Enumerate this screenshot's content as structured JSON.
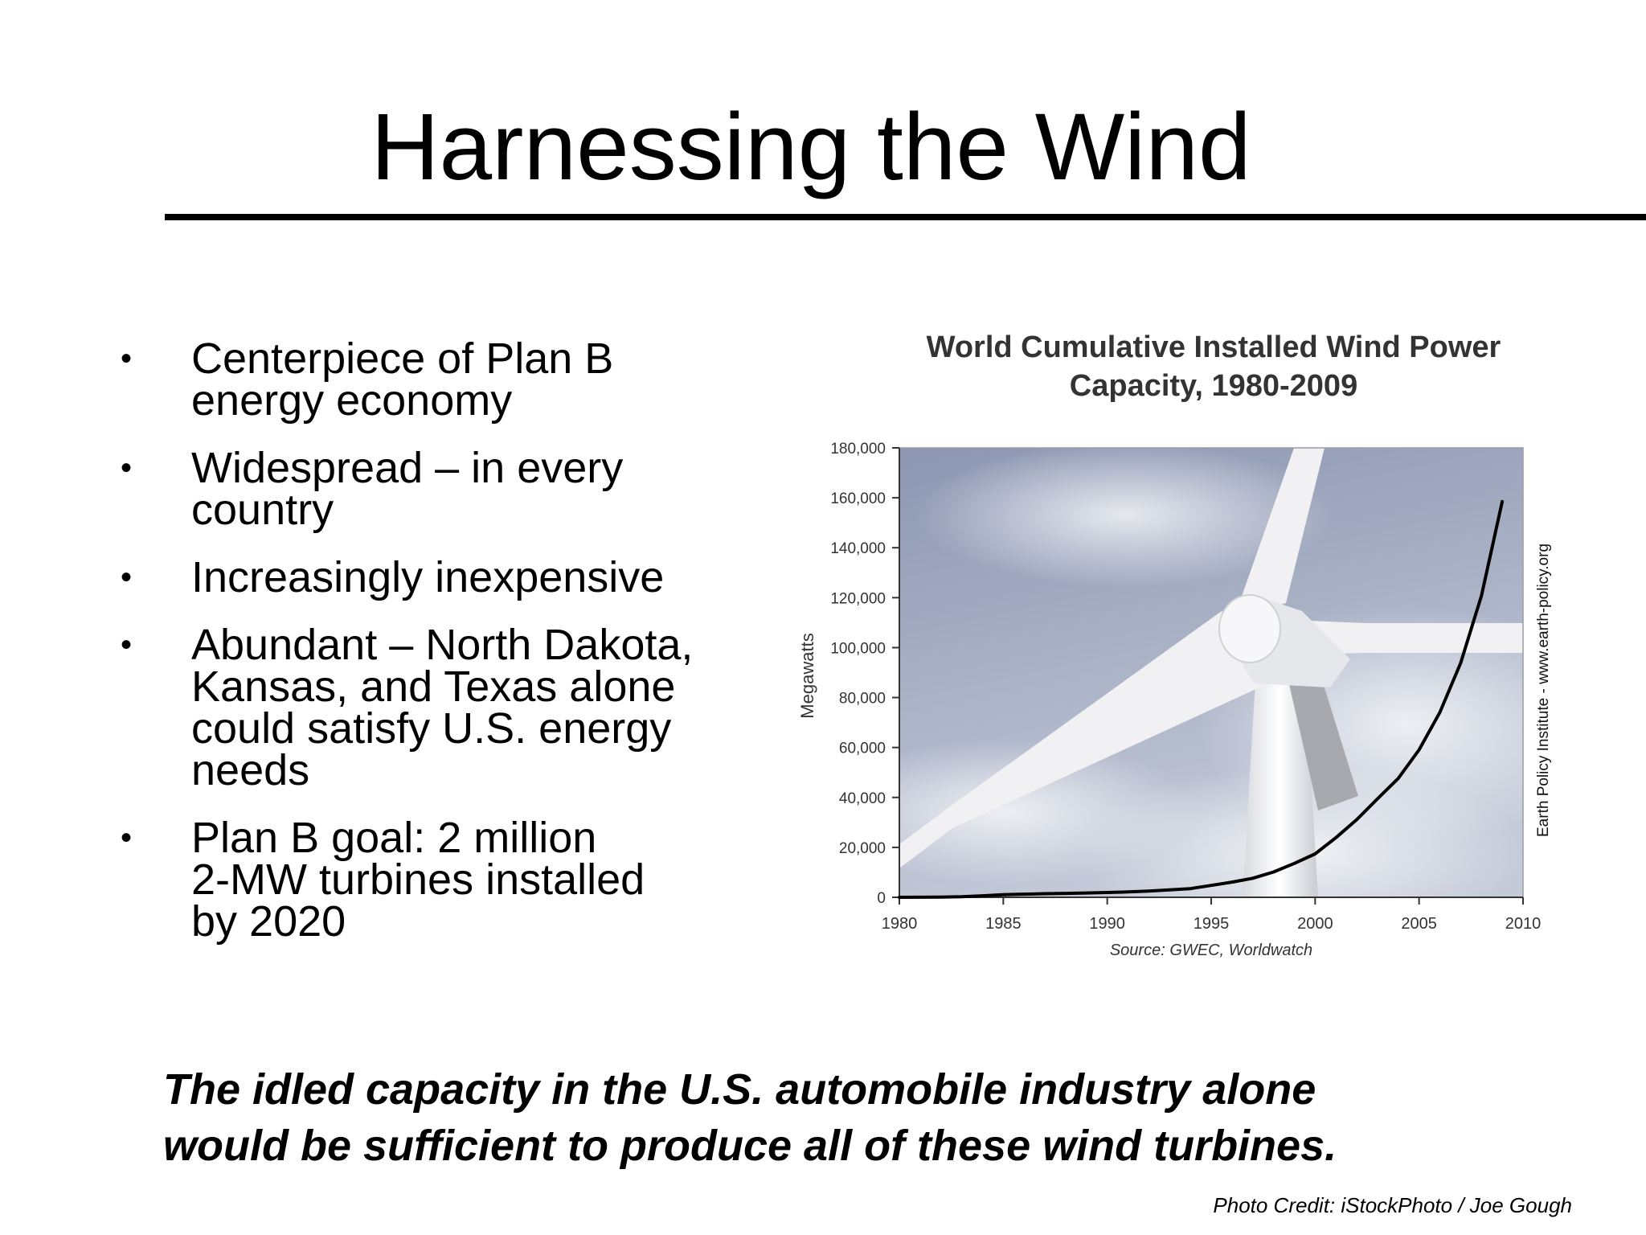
{
  "slide": {
    "title": "Harnessing the Wind",
    "bullets": [
      "Centerpiece of Plan B\nenergy economy",
      "Widespread – in every\ncountry",
      "Increasingly inexpensive",
      "Abundant – North Dakota,\nKansas, and Texas alone\ncould satisfy U.S. energy\nneeds",
      "Plan B goal: 2 million\n2-MW turbines installed\nby 2020"
    ],
    "bullet_marker": "•",
    "closing_note": "The idled capacity in the U.S. automobile industry alone\nwould be sufficient to produce all of these wind turbines.",
    "photo_credit": "Photo Credit: iStockPhoto / Joe Gough"
  },
  "chart_data": {
    "type": "line",
    "title": "World Cumulative Installed Wind Power\nCapacity, 1980-2009",
    "xlabel": "",
    "ylabel": "Megawatts",
    "source": "Source: GWEC, Worldwatch",
    "side_note": "Earth Policy Institute - www.earth-policy.org",
    "xlim": [
      1980,
      2010
    ],
    "ylim": [
      0,
      180000
    ],
    "x_ticks": [
      1980,
      1985,
      1990,
      1995,
      2000,
      2005,
      2010
    ],
    "y_ticks": [
      0,
      20000,
      40000,
      60000,
      80000,
      100000,
      120000,
      140000,
      160000,
      180000
    ],
    "x_tick_labels": [
      "1980",
      "1985",
      "1990",
      "1995",
      "2000",
      "2005",
      "2010"
    ],
    "y_tick_labels": [
      "0",
      "20,000",
      "40,000",
      "60,000",
      "80,000",
      "100,000",
      "120,000",
      "140,000",
      "160,000",
      "180,000"
    ],
    "grid": false,
    "series": [
      {
        "x": [
          1980,
          1981,
          1982,
          1983,
          1984,
          1985,
          1986,
          1987,
          1988,
          1989,
          1990,
          1991,
          1992,
          1993,
          1994,
          1995,
          1996,
          1997,
          1998,
          1999,
          2000,
          2001,
          2002,
          2003,
          2004,
          2005,
          2006,
          2007,
          2008,
          2009
        ],
        "values": [
          10,
          25,
          90,
          210,
          600,
          1020,
          1270,
          1450,
          1580,
          1730,
          1930,
          2170,
          2510,
          2990,
          3490,
          4780,
          6070,
          7640,
          10150,
          13600,
          17400,
          23900,
          31100,
          39430,
          47620,
          59090,
          74050,
          93820,
          120800,
          158500
        ],
        "color": "#000000"
      }
    ]
  },
  "colors": {
    "text": "#000000",
    "chart_title": "#333333",
    "axis": "#333333",
    "sky_top": "#8d97b2",
    "sky_bottom": "#c4cad8",
    "turbine": "#f1f1f3",
    "turbine_shade": "#a8a9ae"
  }
}
